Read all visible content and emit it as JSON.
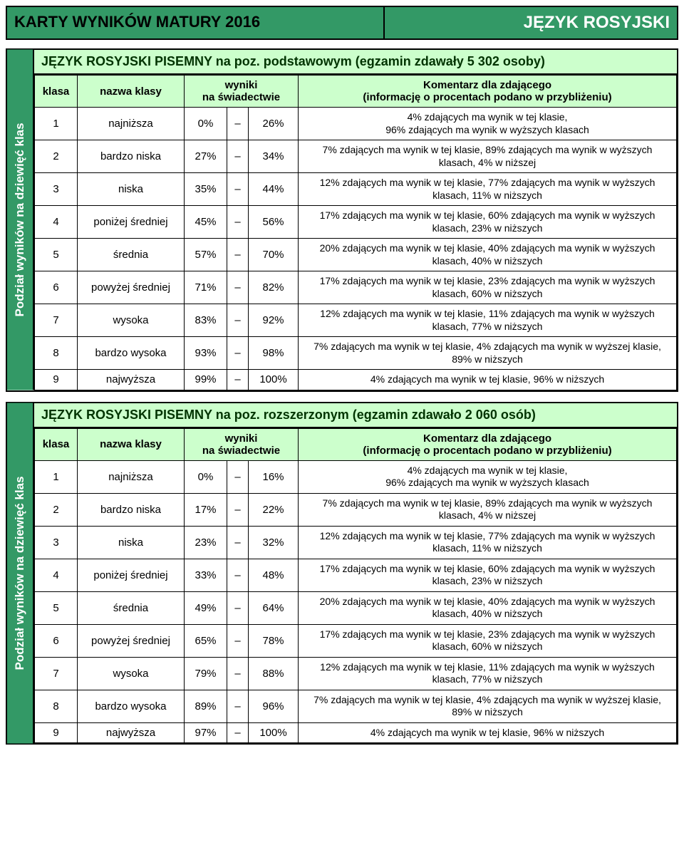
{
  "header": {
    "left": "KARTY WYNIKÓW MATURY 2016",
    "right": "JĘZYK ROSYJSKI"
  },
  "vertical_label": "Podział wyników na dziewięć klas",
  "columns": {
    "klasa": "klasa",
    "nazwa": "nazwa klasy",
    "wyniki": "wyniki\nna świadectwie",
    "komentarz": "Komentarz dla zdającego\n(informację o procentach podano w przybliżeniu)"
  },
  "sections": [
    {
      "title": "JĘZYK ROSYJSKI PISEMNY na poz. podstawowym (egzamin zdawały 5 302 osoby)",
      "rows": [
        {
          "klasa": "1",
          "nazwa": "najniższa",
          "w1": "0%",
          "w2": "26%",
          "komentarz": "4% zdających ma wynik w tej klasie,\n96% zdających ma wynik w wyższych klasach"
        },
        {
          "klasa": "2",
          "nazwa": "bardzo niska",
          "w1": "27%",
          "w2": "34%",
          "komentarz": "7% zdających ma wynik w tej klasie, 89% zdających ma wynik w wyższych klasach, 4% w niższej"
        },
        {
          "klasa": "3",
          "nazwa": "niska",
          "w1": "35%",
          "w2": "44%",
          "komentarz": "12% zdających ma wynik w tej klasie, 77% zdających ma wynik w wyższych klasach, 11% w niższych"
        },
        {
          "klasa": "4",
          "nazwa": "poniżej średniej",
          "w1": "45%",
          "w2": "56%",
          "komentarz": "17% zdających ma wynik w tej klasie, 60% zdających ma wynik w wyższych klasach, 23% w niższych"
        },
        {
          "klasa": "5",
          "nazwa": "średnia",
          "w1": "57%",
          "w2": "70%",
          "komentarz": "20% zdających ma wynik w tej klasie, 40% zdających ma wynik w wyższych klasach, 40% w niższych"
        },
        {
          "klasa": "6",
          "nazwa": "powyżej średniej",
          "w1": "71%",
          "w2": "82%",
          "komentarz": "17% zdających ma wynik w tej klasie, 23% zdających ma wynik w wyższych klasach, 60% w niższych"
        },
        {
          "klasa": "7",
          "nazwa": "wysoka",
          "w1": "83%",
          "w2": "92%",
          "komentarz": "12% zdających ma wynik w tej klasie, 11% zdających ma wynik w wyższych klasach, 77% w niższych"
        },
        {
          "klasa": "8",
          "nazwa": "bardzo wysoka",
          "w1": "93%",
          "w2": "98%",
          "komentarz": "7% zdających ma wynik w tej klasie, 4% zdających ma wynik w wyższej klasie, 89% w niższych"
        },
        {
          "klasa": "9",
          "nazwa": "najwyższa",
          "w1": "99%",
          "w2": "100%",
          "komentarz": "4% zdających ma wynik w tej klasie, 96% w niższych"
        }
      ]
    },
    {
      "title": "JĘZYK ROSYJSKI PISEMNY na poz. rozszerzonym (egzamin zdawało 2 060 osób)",
      "rows": [
        {
          "klasa": "1",
          "nazwa": "najniższa",
          "w1": "0%",
          "w2": "16%",
          "komentarz": "4% zdających ma wynik w tej klasie,\n96% zdających ma wynik w wyższych klasach"
        },
        {
          "klasa": "2",
          "nazwa": "bardzo niska",
          "w1": "17%",
          "w2": "22%",
          "komentarz": "7% zdających ma wynik w tej klasie, 89% zdających ma wynik w wyższych klasach, 4% w niższej"
        },
        {
          "klasa": "3",
          "nazwa": "niska",
          "w1": "23%",
          "w2": "32%",
          "komentarz": "12% zdających ma wynik w tej klasie, 77% zdających ma wynik w wyższych klasach, 11% w niższych"
        },
        {
          "klasa": "4",
          "nazwa": "poniżej średniej",
          "w1": "33%",
          "w2": "48%",
          "komentarz": "17% zdających ma wynik w tej klasie, 60% zdających ma wynik w wyższych klasach, 23% w niższych"
        },
        {
          "klasa": "5",
          "nazwa": "średnia",
          "w1": "49%",
          "w2": "64%",
          "komentarz": "20% zdających ma wynik w tej klasie, 40% zdających ma wynik w wyższych klasach, 40% w niższych"
        },
        {
          "klasa": "6",
          "nazwa": "powyżej średniej",
          "w1": "65%",
          "w2": "78%",
          "komentarz": "17% zdających ma wynik w tej klasie, 23% zdających ma wynik w wyższych klasach, 60% w niższych"
        },
        {
          "klasa": "7",
          "nazwa": "wysoka",
          "w1": "79%",
          "w2": "88%",
          "komentarz": "12% zdających ma wynik w tej klasie, 11% zdających ma wynik w wyższych klasach, 77% w niższych"
        },
        {
          "klasa": "8",
          "nazwa": "bardzo wysoka",
          "w1": "89%",
          "w2": "96%",
          "komentarz": "7% zdających ma wynik w tej klasie, 4% zdających ma wynik w wyższej klasie, 89% w niższych"
        },
        {
          "klasa": "9",
          "nazwa": "najwyższa",
          "w1": "97%",
          "w2": "100%",
          "komentarz": "4% zdających ma wynik w tej klasie, 96% w niższych"
        }
      ]
    }
  ],
  "colors": {
    "header_bg": "#339966",
    "light_bg": "#ccffcc",
    "title_text": "#003300"
  }
}
